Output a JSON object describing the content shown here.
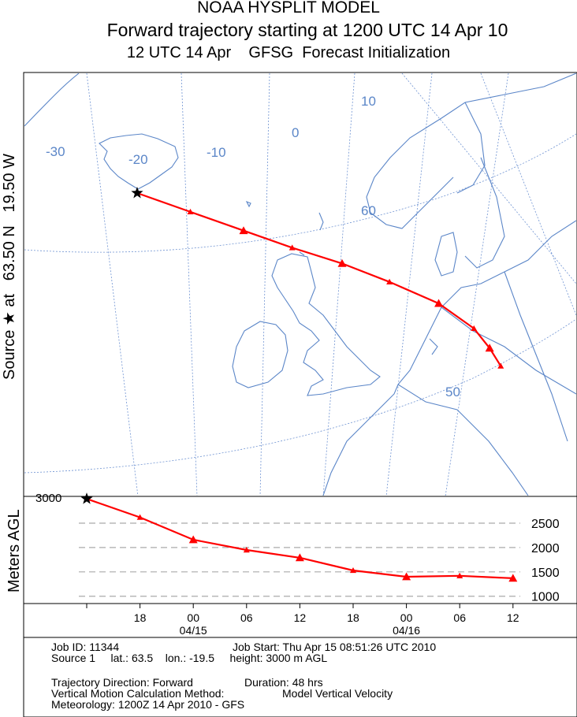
{
  "title": {
    "line1": "NOAA HYSPLIT MODEL",
    "line2": "Forward trajectory starting at 1200 UTC 14 Apr 10",
    "line3": "12 UTC 14 Apr    GFSG  Forecast Initialization"
  },
  "source_label": "Source ★ at   63.50 N   19.50 W",
  "map": {
    "lon_labels": [
      "-30",
      "-20",
      "-10",
      "0",
      "10"
    ],
    "lat_labels": [
      "60",
      "50"
    ],
    "colors": {
      "coast": "#5b86c8",
      "grid": "#6f93d2",
      "trajectory": "#ff0000"
    },
    "trajectory_points": [
      {
        "lon": -19.5,
        "lat": 63.5
      },
      {
        "lon": -16.0,
        "lat": 62.4
      },
      {
        "lon": -12.5,
        "lat": 61.3
      },
      {
        "lon": -9.3,
        "lat": 60.3
      },
      {
        "lon": -6.0,
        "lat": 59.4
      },
      {
        "lon": -2.9,
        "lat": 58.3
      },
      {
        "lon": 0.3,
        "lat": 57.0
      },
      {
        "lon": 2.5,
        "lat": 55.4
      },
      {
        "lon": 3.4,
        "lat": 54.1
      },
      {
        "lon": 4.0,
        "lat": 52.9
      }
    ]
  },
  "chart_data": {
    "type": "line",
    "title": "NOAA HYSPLIT MODEL",
    "subtitle": "Forward trajectory starting at 1200 UTC 14 Apr 10",
    "ylabel": "Meters AGL",
    "xlabel": "",
    "x": [
      "12",
      "18",
      "00",
      "06",
      "12",
      "18",
      "00",
      "06",
      "12"
    ],
    "date_labels": [
      {
        "at": 2,
        "text": "04/15"
      },
      {
        "at": 6,
        "text": "04/16"
      }
    ],
    "yticks": [
      1000,
      1500,
      2000,
      2500
    ],
    "ylim": [
      850,
      3050
    ],
    "grid": true,
    "series": [
      {
        "values": [
          3000,
          2620,
          2160,
          1950,
          1790,
          1530,
          1400,
          1420,
          1370
        ]
      }
    ],
    "start_label": "3000"
  },
  "info": {
    "line1a": "Job ID: 11344",
    "line1b": "Job Start: Thu Apr 15 08:51:26 UTC 2010",
    "line2": "Source 1     lat.: 63.5    lon.: -19.5     height: 3000 m AGL",
    "line3a": "Trajectory Direction: Forward",
    "line3b": "Duration: 48 hrs",
    "line4a": "Vertical Motion Calculation Method:",
    "line4b": "Model Vertical Velocity",
    "line5": "Meteorology: 1200Z 14 Apr 2010 - GFS"
  }
}
